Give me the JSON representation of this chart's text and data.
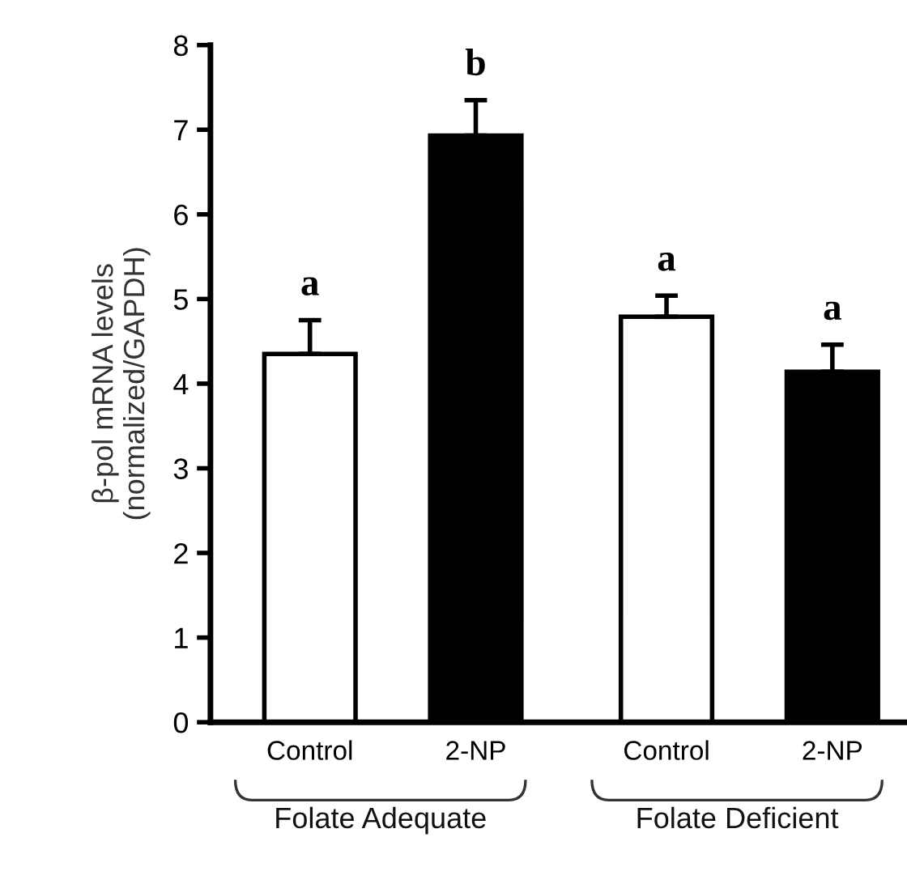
{
  "chart_data": {
    "type": "bar",
    "ylabel": "β-pol mRNA levels\n(normalized/GAPDH)",
    "categories": [
      "Control",
      "2-NP",
      "Control",
      "2-NP"
    ],
    "values": [
      4.35,
      6.93,
      4.79,
      4.14
    ],
    "errors": [
      0.4,
      0.42,
      0.25,
      0.32
    ],
    "colors": [
      "#ffffff",
      "#000000",
      "#ffffff",
      "#000000"
    ],
    "value_labels": [
      "a",
      "b",
      "a",
      "a"
    ],
    "annotations": [
      "Folate Adequate",
      "Folate Deficient"
    ],
    "ylim": [
      0,
      8
    ],
    "yticks": [
      0,
      1,
      2,
      3,
      4,
      5,
      6,
      7,
      8
    ],
    "grid": false,
    "legend": false
  }
}
